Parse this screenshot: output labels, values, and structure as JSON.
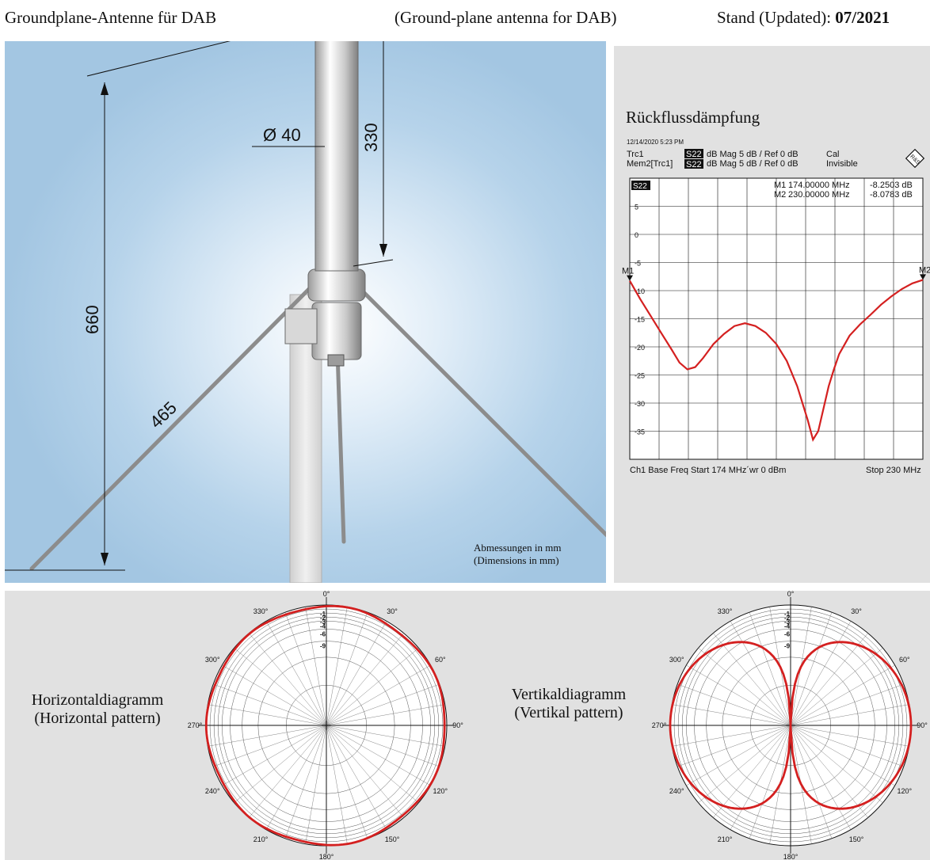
{
  "header": {
    "left_title": "Groundplane-Antenne für DAB",
    "middle_title": "(Ground-plane antenna for DAB)",
    "updated_prefix": "Stand (Updated): ",
    "updated_value": "07/2021"
  },
  "photo": {
    "dims": {
      "diameter": "Ø 40",
      "top_length": "330",
      "height": "660",
      "radial": "465"
    },
    "note_line1": "Abmessungen in mm",
    "note_line2": "(Dimensions in mm)"
  },
  "vna": {
    "title": "Rückflussdämpfung",
    "timestamp": "12/14/2020 5:23 PM",
    "trc1_label": "Trc1",
    "mem2_label": "Mem2[Trc1]",
    "param": "S22",
    "trc1_info": "dB Mag  5 dB /  Ref 0 dB",
    "mem2_info": "dB Mag  5 dB /  Ref 0 dB",
    "trc1_state": "Cal",
    "mem2_state": "Invisible",
    "marker1": {
      "name": "M1",
      "freq": "174.00000 MHz",
      "value": "-8.2503 dB"
    },
    "marker2": {
      "name": "M2",
      "freq": "230.00000 MHz",
      "value": "-8.0783 dB"
    },
    "footer_left": "Ch1  Base Freq Start  174 MHz´wr   0 dBm",
    "footer_right": "Stop  230 MHz",
    "ytick_labels": [
      "5",
      "0",
      "-5",
      "-10",
      "-15",
      "-20",
      "-25",
      "-30",
      "-35"
    ],
    "trace_color": "#d42020",
    "chart_data": {
      "type": "line",
      "x_unit": "MHz",
      "y_unit": "dB",
      "xlim": [
        174,
        230
      ],
      "ylim": [
        -40,
        10
      ],
      "y_ticks": [
        5,
        0,
        -5,
        -10,
        -15,
        -20,
        -25,
        -30,
        -35
      ],
      "series": [
        {
          "x": [
            174,
            176,
            178,
            180,
            182,
            183.5,
            185,
            186.5,
            188,
            190,
            192,
            194,
            196,
            198,
            200,
            202,
            204,
            206,
            208,
            209,
            210,
            211,
            212,
            213,
            214,
            216,
            218,
            220,
            222,
            224,
            226,
            228,
            230
          ],
          "y": [
            -8.25,
            -11.5,
            -14.5,
            -17.5,
            -20.5,
            -22.8,
            -24,
            -23.6,
            -22,
            -19.5,
            -17.7,
            -16.3,
            -15.8,
            -16.3,
            -17.5,
            -19.5,
            -22.5,
            -27,
            -33,
            -36.5,
            -35,
            -31,
            -27,
            -24,
            -21.3,
            -18,
            -16,
            -14.3,
            -12.5,
            -11,
            -9.7,
            -8.7,
            -8.08
          ]
        }
      ]
    }
  },
  "patterns": {
    "horizontal_label_1": "Horizontaldiagramm",
    "horizontal_label_2": "(Horizontal pattern)",
    "vertical_label_1": "Vertikaldiagramm",
    "vertical_label_2": "(Vertikal pattern)",
    "angle_labels": [
      "0°",
      "30°",
      "60°",
      "90°",
      "120°",
      "150°",
      "180°",
      "210°",
      "240°",
      "270°",
      "300°",
      "330°"
    ],
    "db_labels": [
      "-1",
      "-2",
      "-3",
      "-4",
      "-6",
      "-9"
    ],
    "pattern_color": "#d42020",
    "chart_data": [
      {
        "type": "polar",
        "name": "Horizontaldiagramm",
        "angles_deg": [
          0,
          30,
          60,
          90,
          120,
          150,
          180,
          210,
          240,
          270,
          300,
          330
        ],
        "relative_db": [
          -0.3,
          -0.5,
          -0.4,
          -0.3,
          -0.4,
          -0.3,
          -0.2,
          -0.4,
          -0.3,
          -0.3,
          -0.3,
          -0.5
        ]
      },
      {
        "type": "polar",
        "name": "Vertikaldiagramm",
        "shape": "figure-eight",
        "angles_deg": [
          0,
          30,
          60,
          90,
          120,
          150,
          180,
          210,
          240,
          270,
          300,
          330
        ],
        "relative_db": [
          -40,
          -6,
          -1.2,
          0,
          -1.2,
          -6,
          -40,
          -6,
          -1.2,
          0,
          -1.2,
          -6
        ]
      }
    ]
  }
}
